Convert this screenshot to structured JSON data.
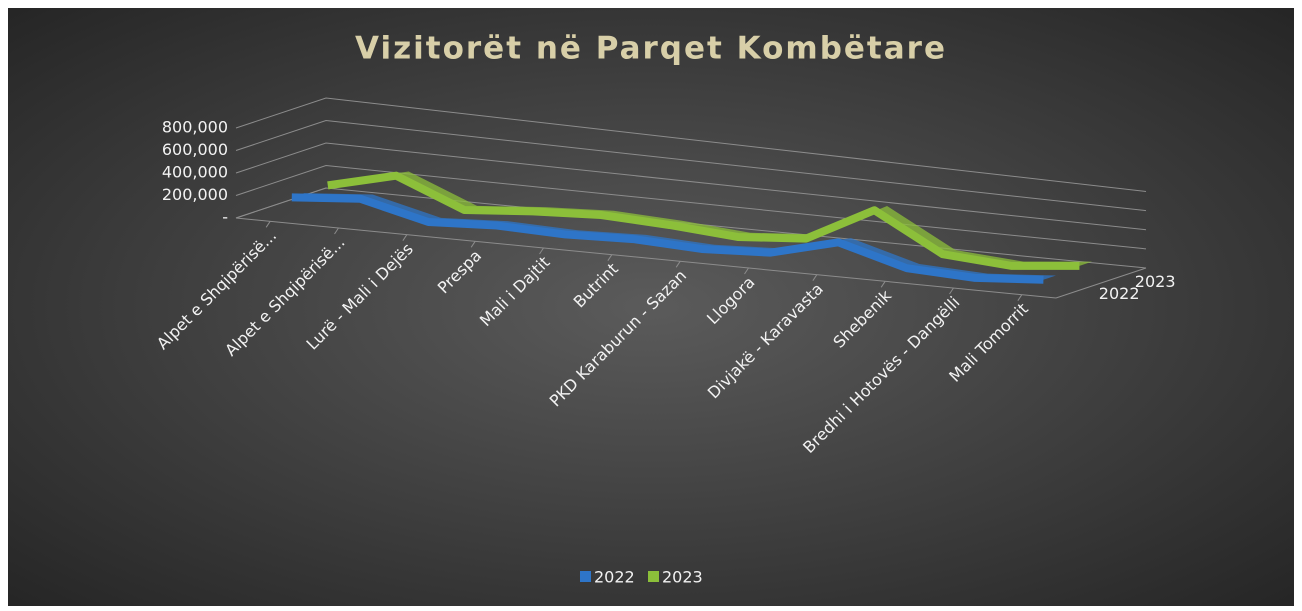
{
  "chart_data": {
    "type": "line3d",
    "title": "Vizitorët në Parqet Kombëtare",
    "categories": [
      "Alpet e Shqipërisë...",
      "Alpet e Shqipërisë...",
      "Lurë - Mali i Dejës",
      "Prespa",
      "Mali i Dajtit",
      "Butrint",
      "PKD Karaburun - Sazan",
      "Llogora",
      "Divjakë - Karavasta",
      "Shebenik",
      "Bredhi i Hotovës - Dangëlli",
      "Mali Tomorrit"
    ],
    "series": [
      {
        "name": "2022",
        "color": "#2e75c8",
        "values": [
          150000,
          200000,
          50000,
          80000,
          60000,
          80000,
          50000,
          80000,
          250000,
          60000,
          30000,
          80000
        ]
      },
      {
        "name": "2023",
        "color": "#8cbf3a",
        "values": [
          150000,
          300000,
          50000,
          100000,
          130000,
          100000,
          50000,
          100000,
          450000,
          80000,
          30000,
          100000
        ]
      }
    ],
    "ylim": [
      0,
      800000
    ],
    "yticks": [
      {
        "value": 0,
        "label": "-"
      },
      {
        "value": 200000,
        "label": "200,000"
      },
      {
        "value": 400000,
        "label": "400,000"
      },
      {
        "value": 600000,
        "label": "600,000"
      },
      {
        "value": 800000,
        "label": "800,000"
      }
    ],
    "grid": true
  }
}
